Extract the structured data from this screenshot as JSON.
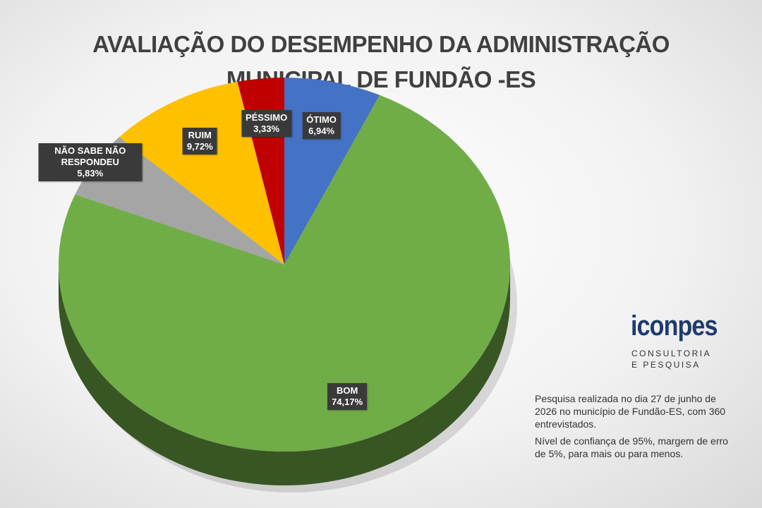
{
  "chart_data": {
    "type": "pie",
    "title": "AVALIAÇÃO DO DESEMPENHO DA ADMINISTRAÇÃO MUNICIPAL DE FUNDÃO -ES",
    "categories": [
      "ÓTIMO",
      "BOM",
      "NÃO SABE NÃO RESPONDEU",
      "RUIM",
      "PÉSSIMO"
    ],
    "values": [
      6.94,
      74.17,
      5.83,
      9.72,
      3.33
    ],
    "value_labels": [
      "6,94%",
      "74,17%",
      "5,83%",
      "9,72%",
      "3,33%"
    ],
    "colors": [
      "#4472c4",
      "#70ad47",
      "#a5a5a5",
      "#ffc000",
      "#c00000"
    ],
    "annotations": [
      "Pesquisa realizada no dia 27 de junho de 2026 no município de Fundão-ES, com 360 entrevistados.",
      "Nível de confiança de 95%, margem de erro de 5%, para mais ou para menos."
    ]
  },
  "logo": {
    "name": "iconpes",
    "tagline": "CONSULTORIA E PESQUISA"
  }
}
